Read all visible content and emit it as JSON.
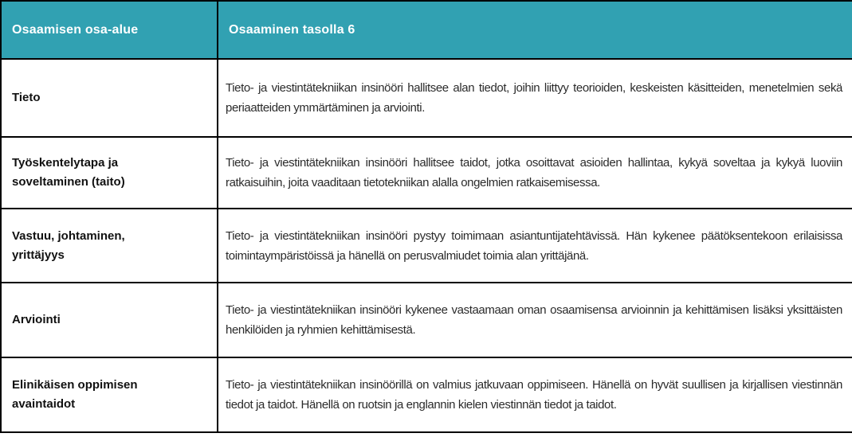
{
  "colors": {
    "header_background": "#31A1B2",
    "header_text": "#FFFFFF",
    "border": "#000000",
    "label_text": "#111111",
    "body_text": "#2B2B2B"
  },
  "table": {
    "headers": {
      "area": "Osaamisen osa-alue",
      "level": "Osaaminen tasolla 6"
    },
    "rows": [
      {
        "area": "Tieto",
        "description": "Tieto- ja viestintätekniikan insinööri hallitsee alan tiedot, joihin liittyy teorioiden, keskeisten käsitteiden, menetelmien sekä periaatteiden ymmärtäminen ja arviointi."
      },
      {
        "area": "Työskentelytapa ja\nsoveltaminen (taito)",
        "description": "Tieto- ja viestintätekniikan insinööri hallitsee taidot, jotka osoittavat asioiden hallintaa, kykyä soveltaa ja kykyä luoviin ratkaisuihin, joita vaaditaan tietotekniikan alalla ongelmien ratkaisemisessa."
      },
      {
        "area": "Vastuu, johtaminen,\nyrittäjyys",
        "description": "Tieto- ja viestintätekniikan insinööri pystyy toimimaan asiantuntijatehtävissä. Hän kykenee päätöksentekoon erilaisissa toimintaympäristöissä ja hänellä on perusvalmiudet toimia alan yrittäjänä."
      },
      {
        "area": "Arviointi",
        "description": "Tieto- ja viestintätekniikan insinööri kykenee vastaamaan oman osaamisensa arvioinnin ja kehittämisen lisäksi yksittäisten henkilöiden ja ryhmien kehittämisestä."
      },
      {
        "area": "Elinikäisen oppimisen\navaintaidot",
        "description": "Tieto- ja viestintätekniikan insinöörillä on valmius jatkuvaan oppimiseen. Hänellä on hyvät suullisen ja kirjallisen viestinnän tiedot ja taidot. Hänellä on ruotsin ja englannin kielen viestinnän tiedot ja taidot."
      }
    ]
  }
}
